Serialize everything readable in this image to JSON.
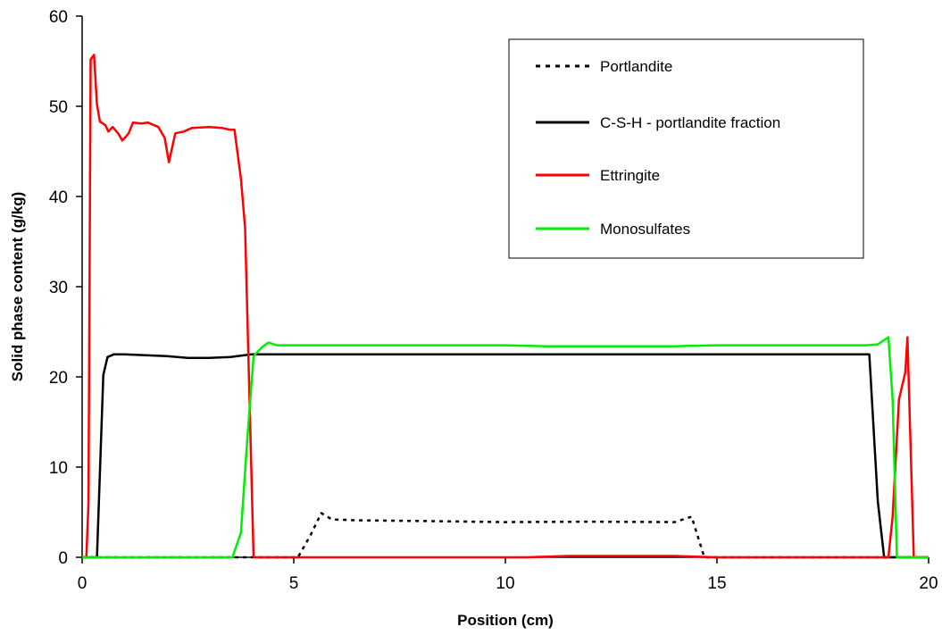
{
  "chart_data": {
    "type": "line",
    "xlabel": "Position (cm)",
    "ylabel": "Solid phase content (g/kg)",
    "xlim": [
      0,
      20
    ],
    "ylim": [
      0,
      60
    ],
    "xticks": [
      0,
      5,
      10,
      15,
      20
    ],
    "yticks": [
      0,
      10,
      20,
      30,
      40,
      50,
      60
    ],
    "grid": false,
    "legend_position": "top-right",
    "series": [
      {
        "name": "Portlandite",
        "color": "#000000",
        "dash": "dotted",
        "points": [
          [
            0,
            0
          ],
          [
            5.1,
            0
          ],
          [
            5.4,
            2.5
          ],
          [
            5.65,
            4.9
          ],
          [
            5.9,
            4.2
          ],
          [
            6.5,
            4.1
          ],
          [
            8.5,
            4.0
          ],
          [
            10,
            3.9
          ],
          [
            12,
            3.95
          ],
          [
            14,
            3.9
          ],
          [
            14.4,
            4.5
          ],
          [
            14.7,
            0
          ],
          [
            20,
            0
          ]
        ]
      },
      {
        "name": "C-S-H - portlandite fraction",
        "color": "#000000",
        "dash": "solid",
        "points": [
          [
            0,
            0
          ],
          [
            0.35,
            0
          ],
          [
            0.5,
            20.2
          ],
          [
            0.6,
            22.2
          ],
          [
            0.75,
            22.5
          ],
          [
            1.0,
            22.5
          ],
          [
            1.5,
            22.4
          ],
          [
            2.0,
            22.3
          ],
          [
            2.5,
            22.1
          ],
          [
            3.0,
            22.1
          ],
          [
            3.5,
            22.2
          ],
          [
            4.0,
            22.5
          ],
          [
            18.6,
            22.5
          ],
          [
            18.8,
            6.2
          ],
          [
            18.95,
            0
          ],
          [
            20,
            0
          ]
        ]
      },
      {
        "name": "Ettringite",
        "color": "#ff0000",
        "dash": "solid",
        "points": [
          [
            0,
            0
          ],
          [
            0.1,
            0
          ],
          [
            0.15,
            6.0
          ],
          [
            0.2,
            55.2
          ],
          [
            0.28,
            55.7
          ],
          [
            0.35,
            50.2
          ],
          [
            0.42,
            48.3
          ],
          [
            0.55,
            47.9
          ],
          [
            0.62,
            47.2
          ],
          [
            0.72,
            47.7
          ],
          [
            0.85,
            47.0
          ],
          [
            0.95,
            46.2
          ],
          [
            1.1,
            47.0
          ],
          [
            1.2,
            48.2
          ],
          [
            1.4,
            48.1
          ],
          [
            1.55,
            48.2
          ],
          [
            1.8,
            47.7
          ],
          [
            1.95,
            46.5
          ],
          [
            2.05,
            43.8
          ],
          [
            2.2,
            47.0
          ],
          [
            2.4,
            47.2
          ],
          [
            2.6,
            47.6
          ],
          [
            3.0,
            47.7
          ],
          [
            3.3,
            47.6
          ],
          [
            3.5,
            47.4
          ],
          [
            3.6,
            47.4
          ],
          [
            3.75,
            42.0
          ],
          [
            3.85,
            36.5
          ],
          [
            4.05,
            0
          ],
          [
            10.5,
            0
          ],
          [
            11.5,
            0.15
          ],
          [
            14,
            0.15
          ],
          [
            15,
            0
          ],
          [
            19.05,
            0
          ],
          [
            19.15,
            4.5
          ],
          [
            19.3,
            17.5
          ],
          [
            19.45,
            20.5
          ],
          [
            19.5,
            24.4
          ],
          [
            19.65,
            0
          ],
          [
            20,
            0
          ]
        ]
      },
      {
        "name": "Monosulfates",
        "color": "#00ee00",
        "dash": "solid",
        "points": [
          [
            0,
            0
          ],
          [
            3.55,
            0
          ],
          [
            3.75,
            2.7
          ],
          [
            3.9,
            13.0
          ],
          [
            4.05,
            22.3
          ],
          [
            4.25,
            23.3
          ],
          [
            4.4,
            23.8
          ],
          [
            4.6,
            23.5
          ],
          [
            5.5,
            23.5
          ],
          [
            10,
            23.5
          ],
          [
            11,
            23.4
          ],
          [
            14,
            23.4
          ],
          [
            15,
            23.5
          ],
          [
            18.5,
            23.5
          ],
          [
            18.8,
            23.6
          ],
          [
            19.05,
            24.4
          ],
          [
            19.15,
            17.5
          ],
          [
            19.25,
            0
          ],
          [
            20,
            0
          ]
        ]
      }
    ]
  }
}
